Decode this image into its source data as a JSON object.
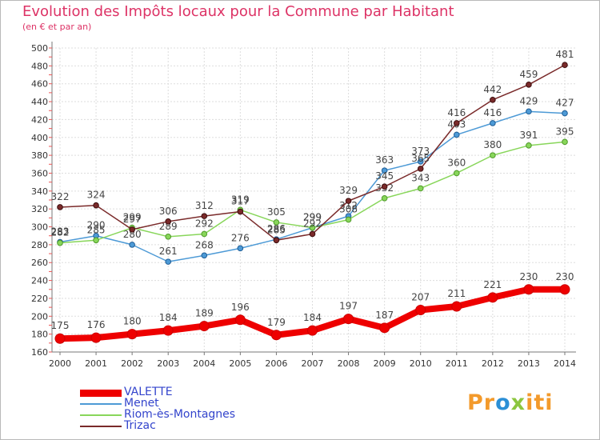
{
  "header": {
    "title": "Evolution des Impôts locaux pour la Commune par Habitant",
    "subtitle": "(en € et par an)"
  },
  "logo": {
    "text": "Proxiti"
  },
  "chart_data": {
    "type": "line",
    "x": [
      2000,
      2001,
      2002,
      2003,
      2004,
      2005,
      2006,
      2007,
      2008,
      2009,
      2010,
      2011,
      2012,
      2013,
      2014
    ],
    "ylim": [
      160,
      500
    ],
    "yticks": [
      160,
      180,
      200,
      220,
      240,
      260,
      280,
      300,
      320,
      340,
      360,
      380,
      400,
      420,
      440,
      460,
      480,
      500
    ],
    "grid": true,
    "legend_position": "bottom-left",
    "series": [
      {
        "name": "VALETTE",
        "color": "#ee0000",
        "values": [
          175,
          176,
          180,
          184,
          189,
          196,
          179,
          184,
          197,
          187,
          207,
          211,
          221,
          230,
          230
        ]
      },
      {
        "name": "Menet",
        "color": "#4d9ad6",
        "values": [
          283,
          290,
          280,
          261,
          268,
          276,
          286,
          299,
          312,
          363,
          373,
          403,
          416,
          429,
          427
        ]
      },
      {
        "name": "Riom-ès-Montagnes",
        "color": "#88d65a",
        "values": [
          282,
          285,
          299,
          289,
          292,
          319,
          305,
          299,
          308,
          332,
          343,
          360,
          380,
          391,
          395
        ]
      },
      {
        "name": "Trizac",
        "color": "#7a2a2a",
        "values": [
          322,
          324,
          297,
          306,
          312,
          317,
          285,
          292,
          329,
          345,
          365,
          416,
          442,
          459,
          481
        ]
      }
    ]
  }
}
